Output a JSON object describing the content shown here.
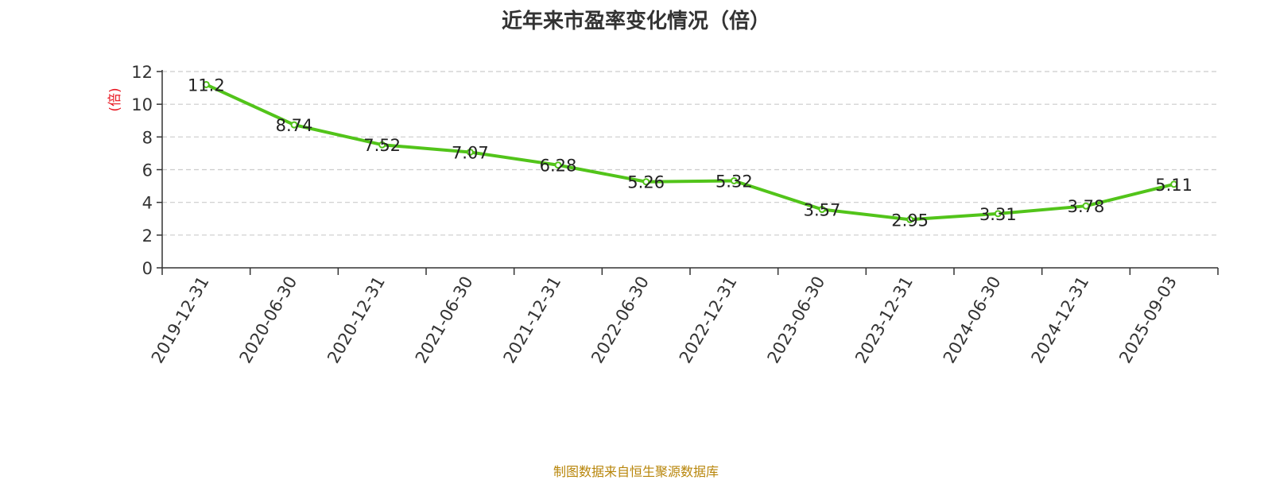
{
  "title": "近年来市盈率变化情况（倍）",
  "source": "制图数据来自恒生聚源数据库",
  "colors": {
    "line": "#52c41a",
    "unit_label": "#e8141f",
    "source": "#b8860b",
    "axis": "#333333",
    "grid": "#cccccc"
  },
  "chart_data": {
    "type": "line",
    "title": "近年来市盈率变化情况（倍）",
    "ylabel": "(倍)",
    "xlabel": "",
    "ylim": [
      0,
      12
    ],
    "yticks": [
      0,
      2,
      4,
      6,
      8,
      10,
      12
    ],
    "grid": true,
    "categories": [
      "2019-12-31",
      "2020-06-30",
      "2020-12-31",
      "2021-06-30",
      "2021-12-31",
      "2022-06-30",
      "2022-12-31",
      "2023-06-30",
      "2023-12-31",
      "2024-06-30",
      "2024-12-31",
      "2025-09-03"
    ],
    "series": [
      {
        "values": [
          11.2,
          8.74,
          7.52,
          7.07,
          6.28,
          5.26,
          5.32,
          3.57,
          2.95,
          3.31,
          3.78,
          5.11
        ],
        "labels": [
          "11.2",
          "8.74",
          "7.52",
          "7.07",
          "6.28",
          "5.26",
          "5.32",
          "3.57",
          "2.95",
          "3.31",
          "3.78",
          "5.11"
        ]
      }
    ]
  }
}
